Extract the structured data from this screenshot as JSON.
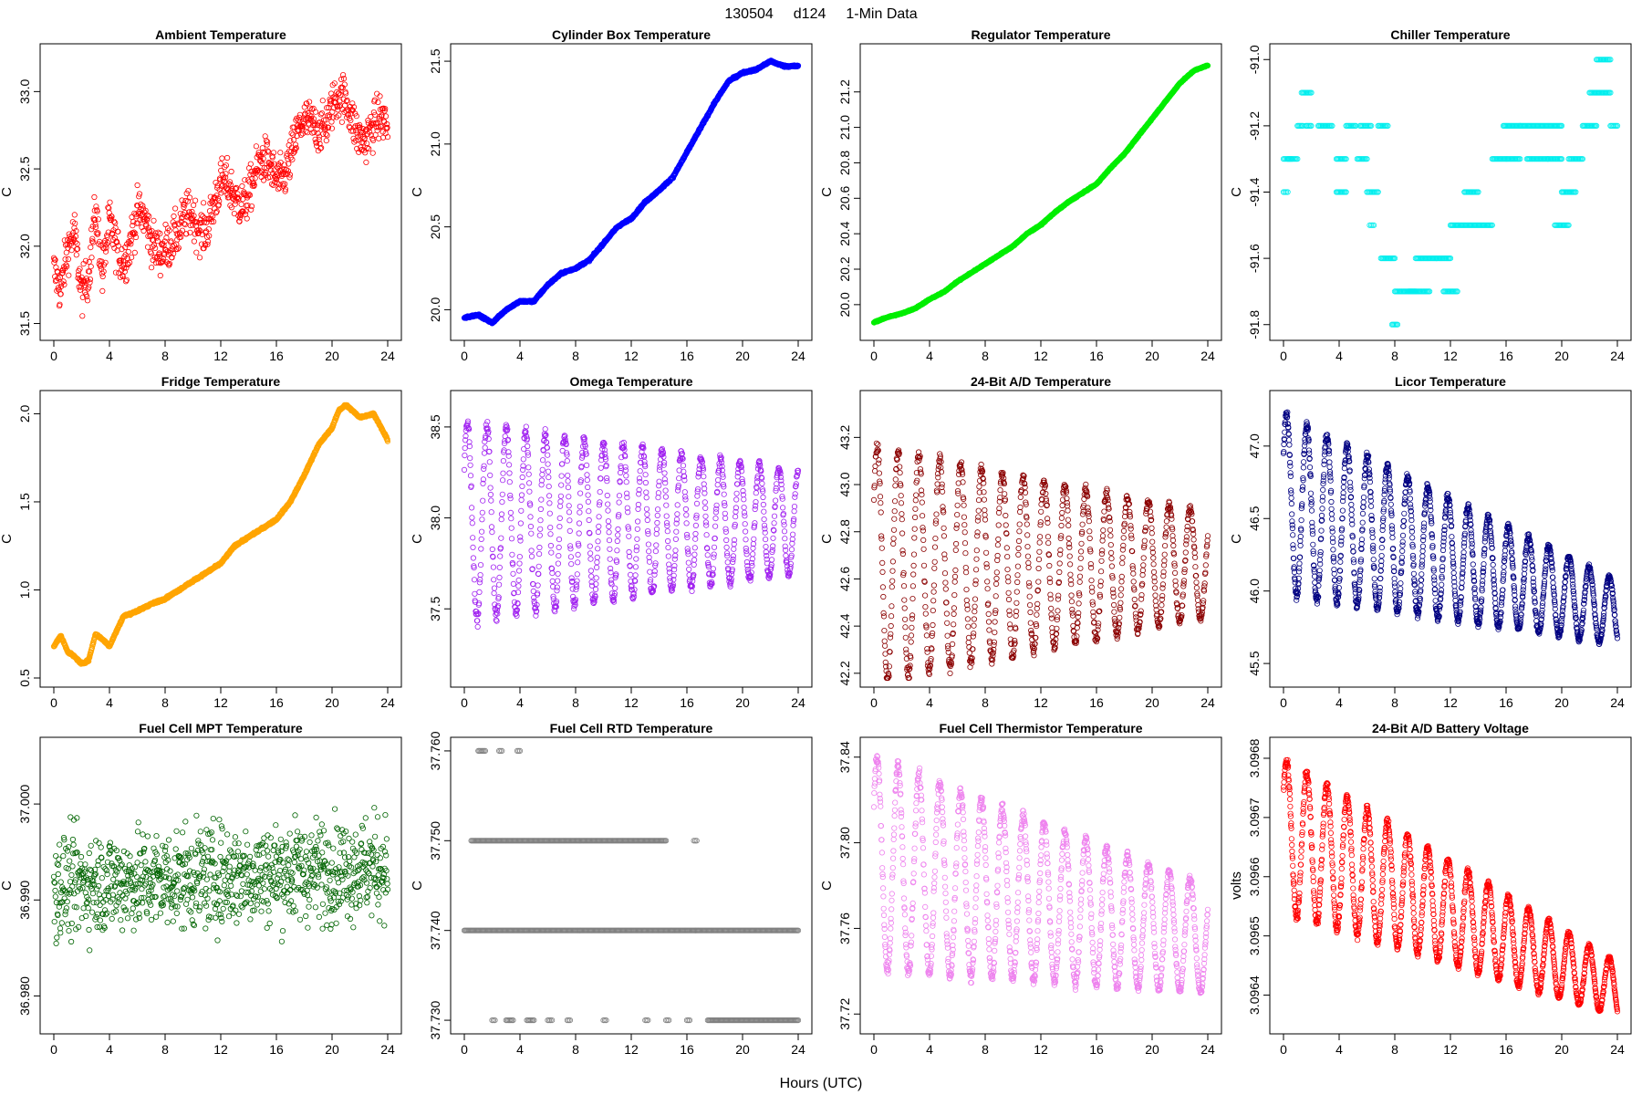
{
  "figure": {
    "title_date": "130504",
    "title_day": "d124",
    "title_res": "1-Min Data",
    "xlabel": "Hours (UTC)"
  },
  "chart_data": [
    {
      "type": "scatter",
      "title": "Ambient Temperature",
      "ylabel": "C",
      "color": "#ff0000",
      "xlim": [
        0,
        24
      ],
      "xticks": [
        "0",
        "4",
        "8",
        "12",
        "16",
        "20",
        "24"
      ],
      "ylim": [
        31.45,
        33.25
      ],
      "yticks": [
        "31.5",
        "32.0",
        "32.5",
        "33.0"
      ],
      "ytick_values": [
        31.5,
        32.0,
        32.5,
        33.0
      ],
      "anchors": [
        [
          0,
          31.85
        ],
        [
          0.5,
          31.6
        ],
        [
          1,
          31.9
        ],
        [
          1.5,
          32.1
        ],
        [
          2,
          31.8
        ],
        [
          2.5,
          31.9
        ],
        [
          3,
          32.2
        ],
        [
          3.5,
          31.7
        ],
        [
          4,
          32.1
        ],
        [
          5,
          32.0
        ],
        [
          6,
          32.15
        ],
        [
          7,
          32.0
        ],
        [
          8,
          32.1
        ],
        [
          9,
          32.0
        ],
        [
          10,
          32.2
        ],
        [
          11,
          32.2
        ],
        [
          12,
          32.3
        ],
        [
          13,
          32.35
        ],
        [
          14,
          32.4
        ],
        [
          15,
          32.45
        ],
        [
          16,
          32.5
        ],
        [
          17,
          32.6
        ],
        [
          18,
          32.7
        ],
        [
          19,
          32.85
        ],
        [
          20,
          32.9
        ],
        [
          21,
          32.85
        ],
        [
          22,
          32.8
        ],
        [
          23,
          32.75
        ],
        [
          24,
          32.7
        ]
      ],
      "noise": 0.18,
      "n": 900,
      "marker": "open-circle"
    },
    {
      "type": "scatter",
      "title": "Cylinder Box Temperature",
      "ylabel": "C",
      "color": "#0000ff",
      "xlim": [
        0,
        24
      ],
      "xticks": [
        "0",
        "4",
        "8",
        "12",
        "16",
        "20",
        "24"
      ],
      "ylim": [
        19.87,
        21.55
      ],
      "yticks": [
        "20.0",
        "20.5",
        "21.0",
        "21.5"
      ],
      "ytick_values": [
        20.0,
        20.5,
        21.0,
        21.5
      ],
      "anchors": [
        [
          0,
          19.95
        ],
        [
          1,
          19.97
        ],
        [
          2,
          19.92
        ],
        [
          3,
          20.0
        ],
        [
          4,
          20.05
        ],
        [
          5,
          20.05
        ],
        [
          6,
          20.15
        ],
        [
          7,
          20.22
        ],
        [
          8,
          20.25
        ],
        [
          9,
          20.3
        ],
        [
          10,
          20.4
        ],
        [
          11,
          20.5
        ],
        [
          12,
          20.55
        ],
        [
          13,
          20.65
        ],
        [
          14,
          20.72
        ],
        [
          15,
          20.8
        ],
        [
          16,
          20.95
        ],
        [
          17,
          21.1
        ],
        [
          18,
          21.25
        ],
        [
          19,
          21.38
        ],
        [
          20,
          21.43
        ],
        [
          21,
          21.45
        ],
        [
          22,
          21.5
        ],
        [
          23,
          21.47
        ],
        [
          24,
          21.47
        ]
      ],
      "noise": 0.01,
      "n": 1440,
      "marker": "open-circle"
    },
    {
      "type": "scatter",
      "title": "Regulator Temperature",
      "ylabel": "C",
      "color": "#00ee00",
      "xlim": [
        0,
        24
      ],
      "xticks": [
        "0",
        "4",
        "8",
        "12",
        "16",
        "20",
        "24"
      ],
      "ylim": [
        19.85,
        21.42
      ],
      "yticks": [
        "20.0",
        "20.2",
        "20.4",
        "20.6",
        "20.8",
        "21.0",
        "21.2"
      ],
      "ytick_values": [
        20.0,
        20.2,
        20.4,
        20.6,
        20.8,
        21.0,
        21.2
      ],
      "anchors": [
        [
          0,
          19.9
        ],
        [
          1,
          19.93
        ],
        [
          2,
          19.95
        ],
        [
          3,
          19.98
        ],
        [
          4,
          20.03
        ],
        [
          5,
          20.07
        ],
        [
          6,
          20.13
        ],
        [
          7,
          20.18
        ],
        [
          8,
          20.23
        ],
        [
          9,
          20.28
        ],
        [
          10,
          20.33
        ],
        [
          11,
          20.4
        ],
        [
          12,
          20.45
        ],
        [
          13,
          20.52
        ],
        [
          14,
          20.58
        ],
        [
          15,
          20.63
        ],
        [
          16,
          20.68
        ],
        [
          17,
          20.77
        ],
        [
          18,
          20.85
        ],
        [
          19,
          20.95
        ],
        [
          20,
          21.05
        ],
        [
          21,
          21.15
        ],
        [
          22,
          21.25
        ],
        [
          23,
          21.32
        ],
        [
          24,
          21.35
        ]
      ],
      "noise": 0.005,
      "n": 1440,
      "marker": "open-circle"
    },
    {
      "type": "scatter",
      "title": "Chiller Temperature",
      "ylabel": "C",
      "color": "#00eeee",
      "xlim": [
        0,
        24
      ],
      "xticks": [
        "0",
        "4",
        "8",
        "12",
        "16",
        "20",
        "24"
      ],
      "ylim": [
        -91.82,
        -90.98
      ],
      "yticks": [
        "-91.8",
        "-91.6",
        "-91.4",
        "-91.2",
        "-91.0"
      ],
      "ytick_values": [
        -91.8,
        -91.6,
        -91.4,
        -91.2,
        -91.0
      ],
      "segments": [
        [
          0,
          0.3,
          -91.4
        ],
        [
          0,
          0.6,
          -91.3
        ],
        [
          1.3,
          2.0,
          -91.1
        ],
        [
          1.0,
          1.4,
          -91.2
        ],
        [
          1.6,
          2.0,
          -91.2
        ],
        [
          0.3,
          1.0,
          -91.3
        ],
        [
          2.5,
          3.5,
          -91.2
        ],
        [
          3.8,
          4.5,
          -91.3
        ],
        [
          3.8,
          4.5,
          -91.4
        ],
        [
          4.5,
          5.2,
          -91.2
        ],
        [
          5.5,
          6.3,
          -91.2
        ],
        [
          5.3,
          6.0,
          -91.3
        ],
        [
          6.0,
          6.8,
          -91.4
        ],
        [
          6.8,
          7.5,
          -91.2
        ],
        [
          6.2,
          6.5,
          -91.5
        ],
        [
          7.0,
          8.0,
          -91.6
        ],
        [
          8.0,
          9.5,
          -91.7
        ],
        [
          7.8,
          8.2,
          -91.8
        ],
        [
          9.5,
          11.0,
          -91.6
        ],
        [
          9.0,
          10.5,
          -91.7
        ],
        [
          11.0,
          12.0,
          -91.6
        ],
        [
          11.5,
          12.5,
          -91.7
        ],
        [
          12.0,
          15.0,
          -91.5
        ],
        [
          13.0,
          14.0,
          -91.4
        ],
        [
          15.0,
          17.0,
          -91.3
        ],
        [
          15.8,
          17.0,
          -91.2
        ],
        [
          17.0,
          20.0,
          -91.2
        ],
        [
          17.5,
          19.0,
          -91.3
        ],
        [
          19.0,
          20.0,
          -91.3
        ],
        [
          19.5,
          20.5,
          -91.5
        ],
        [
          20.0,
          21.0,
          -91.4
        ],
        [
          21.5,
          22.5,
          -91.2
        ],
        [
          22.0,
          23.5,
          -91.1
        ],
        [
          22.5,
          23.5,
          -91.0
        ],
        [
          23.5,
          24.0,
          -91.2
        ],
        [
          20.5,
          21.5,
          -91.3
        ]
      ],
      "n": 0,
      "marker": "open-circle"
    },
    {
      "type": "scatter",
      "title": "Fridge Temperature",
      "ylabel": "C",
      "color": "#ffa500",
      "xlim": [
        0,
        24
      ],
      "xticks": [
        "0",
        "4",
        "8",
        "12",
        "16",
        "20",
        "24"
      ],
      "ylim": [
        0.5,
        2.08
      ],
      "yticks": [
        "0.5",
        "1.0",
        "1.5",
        "2.0"
      ],
      "ytick_values": [
        0.5,
        1.0,
        1.5,
        2.0
      ],
      "anchors": [
        [
          0,
          0.68
        ],
        [
          0.5,
          0.74
        ],
        [
          1,
          0.65
        ],
        [
          1.5,
          0.62
        ],
        [
          2,
          0.58
        ],
        [
          2.5,
          0.6
        ],
        [
          3,
          0.75
        ],
        [
          3.5,
          0.72
        ],
        [
          4,
          0.68
        ],
        [
          5,
          0.85
        ],
        [
          6,
          0.88
        ],
        [
          7,
          0.92
        ],
        [
          8,
          0.95
        ],
        [
          9,
          1.0
        ],
        [
          10,
          1.05
        ],
        [
          11,
          1.1
        ],
        [
          12,
          1.15
        ],
        [
          13,
          1.25
        ],
        [
          14,
          1.3
        ],
        [
          15,
          1.35
        ],
        [
          16,
          1.4
        ],
        [
          17,
          1.5
        ],
        [
          18,
          1.65
        ],
        [
          19,
          1.82
        ],
        [
          20,
          1.92
        ],
        [
          20.5,
          2.02
        ],
        [
          21,
          2.05
        ],
        [
          22,
          1.98
        ],
        [
          23,
          2.0
        ],
        [
          24,
          1.85
        ]
      ],
      "noise": 0.01,
      "n": 1440,
      "marker": "open-circle"
    },
    {
      "type": "scatter",
      "title": "Omega Temperature",
      "ylabel": "C",
      "color": "#a020f0",
      "xlim": [
        0,
        24
      ],
      "xticks": [
        "0",
        "4",
        "8",
        "12",
        "16",
        "20",
        "24"
      ],
      "ylim": [
        37.12,
        38.65
      ],
      "yticks": [
        "37.5",
        "38.0",
        "38.5"
      ],
      "ytick_values": [
        37.5,
        38.0,
        38.5
      ],
      "osc": {
        "center": 37.98,
        "amp_start": 0.55,
        "amp_end": 0.28,
        "period": 1.4
      },
      "n": 1000,
      "marker": "open-circle"
    },
    {
      "type": "scatter",
      "title": "24-Bit A/D Temperature",
      "ylabel": "C",
      "color": "#8b0000",
      "xlim": [
        0,
        24
      ],
      "xticks": [
        "0",
        "4",
        "8",
        "12",
        "16",
        "20",
        "24"
      ],
      "ylim": [
        42.18,
        43.36
      ],
      "yticks": [
        "42.2",
        "42.4",
        "42.6",
        "42.8",
        "43.0",
        "43.2"
      ],
      "ytick_values": [
        42.2,
        42.4,
        42.6,
        42.8,
        43.0,
        43.2
      ],
      "osc": {
        "center": 42.66,
        "amp_start": 0.5,
        "amp_end": 0.22,
        "period": 1.5
      },
      "n": 1000,
      "marker": "open-circle"
    },
    {
      "type": "scatter",
      "title": "Licor Temperature",
      "ylabel": "C",
      "color": "#000080",
      "xlim": [
        0,
        24
      ],
      "xticks": [
        "0",
        "4",
        "8",
        "12",
        "16",
        "20",
        "24"
      ],
      "ylim": [
        45.4,
        47.32
      ],
      "yticks": [
        "45.5",
        "46.0",
        "46.5",
        "47.0"
      ],
      "ytick_values": [
        45.5,
        46.0,
        46.5,
        47.0
      ],
      "osc": {
        "center_start": 46.6,
        "center_end": 45.85,
        "amp_start": 0.62,
        "amp_end": 0.22,
        "period": 1.45
      },
      "n": 1440,
      "marker": "open-circle"
    },
    {
      "type": "scatter",
      "title": "Fuel Cell MPT Temperature",
      "ylabel": "C",
      "color": "#006400",
      "xlim": [
        0,
        24
      ],
      "xticks": [
        "0",
        "4",
        "8",
        "12",
        "16",
        "20",
        "24"
      ],
      "ylim": [
        36.977,
        37.006
      ],
      "yticks": [
        "36.980",
        "36.990",
        "37.000"
      ],
      "ytick_values": [
        36.98,
        36.99,
        37.0
      ],
      "anchors": [
        [
          0,
          36.9915
        ],
        [
          24,
          36.9935
        ]
      ],
      "noise": 0.009,
      "n": 1000,
      "marker": "open-circle"
    },
    {
      "type": "scatter",
      "title": "Fuel Cell RTD Temperature",
      "ylabel": "C",
      "color": "#808080",
      "xlim": [
        0,
        24
      ],
      "xticks": [
        "0",
        "4",
        "8",
        "12",
        "16",
        "20",
        "24"
      ],
      "ylim": [
        37.7295,
        37.7605
      ],
      "yticks": [
        "37.730",
        "37.740",
        "37.750",
        "37.760"
      ],
      "ytick_values": [
        37.73,
        37.74,
        37.75,
        37.76
      ],
      "segments": [
        [
          0,
          24,
          37.74
        ],
        [
          0.5,
          14.5,
          37.75
        ],
        [
          16.5,
          16.7,
          37.75
        ],
        [
          1.0,
          1.5,
          37.76
        ],
        [
          2.5,
          2.7,
          37.76
        ],
        [
          3.8,
          4.0,
          37.76
        ],
        [
          2.0,
          2.2,
          37.73
        ],
        [
          3.0,
          3.5,
          37.73
        ],
        [
          4.5,
          5.0,
          37.73
        ],
        [
          6.0,
          6.3,
          37.73
        ],
        [
          7.4,
          7.6,
          37.73
        ],
        [
          10.0,
          10.2,
          37.73
        ],
        [
          13.0,
          13.2,
          37.73
        ],
        [
          14.5,
          14.7,
          37.73
        ],
        [
          16.0,
          16.2,
          37.73
        ],
        [
          17.5,
          24,
          37.73
        ]
      ],
      "n": 0,
      "marker": "open-circle"
    },
    {
      "type": "scatter",
      "title": "Fuel Cell Thermistor Temperature",
      "ylabel": "C",
      "color": "#ee82ee",
      "xlim": [
        0,
        24
      ],
      "xticks": [
        "0",
        "4",
        "8",
        "12",
        "16",
        "20",
        "24"
      ],
      "ylim": [
        37.715,
        37.845
      ],
      "yticks": [
        "37.72",
        "37.76",
        "37.80",
        "37.84"
      ],
      "ytick_values": [
        37.72,
        37.76,
        37.8,
        37.84
      ],
      "osc": {
        "center_start": 37.79,
        "center_end": 37.755,
        "amp_start": 0.05,
        "amp_end": 0.025,
        "period": 1.5
      },
      "n": 1200,
      "marker": "open-circle"
    },
    {
      "type": "scatter",
      "title": "24-Bit A/D Battery Voltage",
      "ylabel": "volts",
      "color": "#ff0000",
      "xlim": [
        0,
        24
      ],
      "xticks": [
        "0",
        "4",
        "8",
        "12",
        "16",
        "20",
        "24"
      ],
      "ylim": [
        3.09635,
        3.09682
      ],
      "yticks": [
        "3.0964",
        "3.0965",
        "3.0966",
        "3.0967",
        "3.0968"
      ],
      "ytick_values": [
        3.0964,
        3.0965,
        3.0966,
        3.0967,
        3.0968
      ],
      "osc": {
        "center_start": 3.09667,
        "center_end": 3.09641,
        "amp_start": 0.00013,
        "amp_end": 4.5e-05,
        "period": 1.45
      },
      "n": 1440,
      "marker": "open-circle"
    }
  ]
}
